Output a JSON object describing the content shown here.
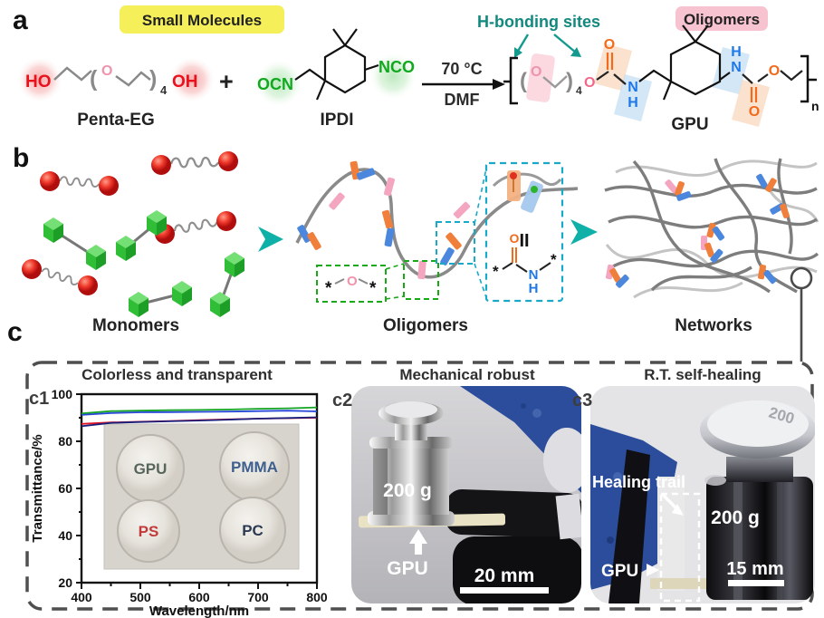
{
  "panel_a": {
    "label": "a",
    "badge_small_molecules": "Small Molecules",
    "penta_eg": {
      "ho": "HO",
      "paren_l": "(",
      "o": "O",
      "paren_r": ")",
      "sub": "4",
      "oh": "OH",
      "name": "Penta-EG"
    },
    "plus": "+",
    "ipdi": {
      "ocn": "OCN",
      "nco": "NCO",
      "name": "IPDI"
    },
    "reaction": {
      "temperature": "70 °C",
      "solvent": "DMF"
    },
    "h_bonding_label": "H-bonding sites",
    "badge_oligomers": "Oligomers",
    "gpu": {
      "paren_l": "(",
      "o1": "O",
      "paren_r": ")",
      "sub4": "4",
      "o2": "O",
      "o3": "O",
      "n1": "N",
      "h1": "H",
      "h2": "H",
      "n2": "N",
      "o4": "O",
      "o5": "O",
      "sub_n": "n",
      "name": "GPU"
    }
  },
  "panel_b": {
    "label": "b",
    "monomers_label": "Monomers",
    "oligomers_label": "Oligomers",
    "networks_label": "Networks",
    "ether_callout": {
      "star_l": "*",
      "o": "O",
      "star_r": "*"
    },
    "amide_callout": {
      "equiv": "II",
      "star_l": "*",
      "o": "O",
      "n": "N",
      "h": "H",
      "star_r": "*"
    }
  },
  "panel_c": {
    "label": "c",
    "c1": {
      "label": "c1",
      "title": "Colorless and transparent",
      "samples": [
        {
          "name": "GPU",
          "color": "#57655b"
        },
        {
          "name": "PMMA",
          "color": "#3e608e"
        },
        {
          "name": "PS",
          "color": "#c23a3a"
        },
        {
          "name": "PC",
          "color": "#2b3a52"
        }
      ]
    },
    "c2": {
      "label": "c2",
      "title": "Mechanical robust",
      "weight_label": "200 g",
      "material_label": "GPU",
      "scale_label": "20 mm"
    },
    "c3": {
      "label": "c3",
      "title": "R.T. self-healing",
      "annotation": "Healing trail",
      "weight_label": "200 g",
      "weight_top": "200",
      "material_label": "GPU",
      "scale_label": "15 mm"
    }
  },
  "chart_data": {
    "type": "line",
    "title": "Colorless and transparent",
    "xlabel": "Wavelength/nm",
    "ylabel": "Transmittance/%",
    "xlim": [
      400,
      800
    ],
    "ylim": [
      20,
      100
    ],
    "x_ticks": [
      400,
      500,
      600,
      700,
      800
    ],
    "y_ticks": [
      100,
      80,
      60,
      40,
      20
    ],
    "grid": false,
    "legend": "none (samples labeled in inset photo: GPU, PMMA, PS, PC)",
    "x": [
      400,
      450,
      500,
      550,
      600,
      650,
      700,
      750,
      800
    ],
    "series": [
      {
        "name": "green-curve",
        "color": "#12a422",
        "values": [
          91.8,
          92.8,
          93.0,
          93.2,
          93.3,
          93.5,
          93.8,
          94.0,
          94.4
        ]
      },
      {
        "name": "blue-curve",
        "color": "#2748d8",
        "values": [
          91.2,
          92.0,
          92.3,
          92.4,
          92.5,
          92.6,
          92.8,
          93.0,
          92.7
        ]
      },
      {
        "name": "red-curve",
        "color": "#e01424",
        "values": [
          87.4,
          88.0,
          88.3,
          88.6,
          89.0,
          89.3,
          89.6,
          89.8,
          90.0
        ]
      },
      {
        "name": "navy-curve",
        "color": "#1a1f7a",
        "values": [
          86.4,
          87.8,
          88.2,
          88.5,
          88.8,
          89.2,
          89.6,
          89.9,
          90.2
        ]
      }
    ]
  }
}
